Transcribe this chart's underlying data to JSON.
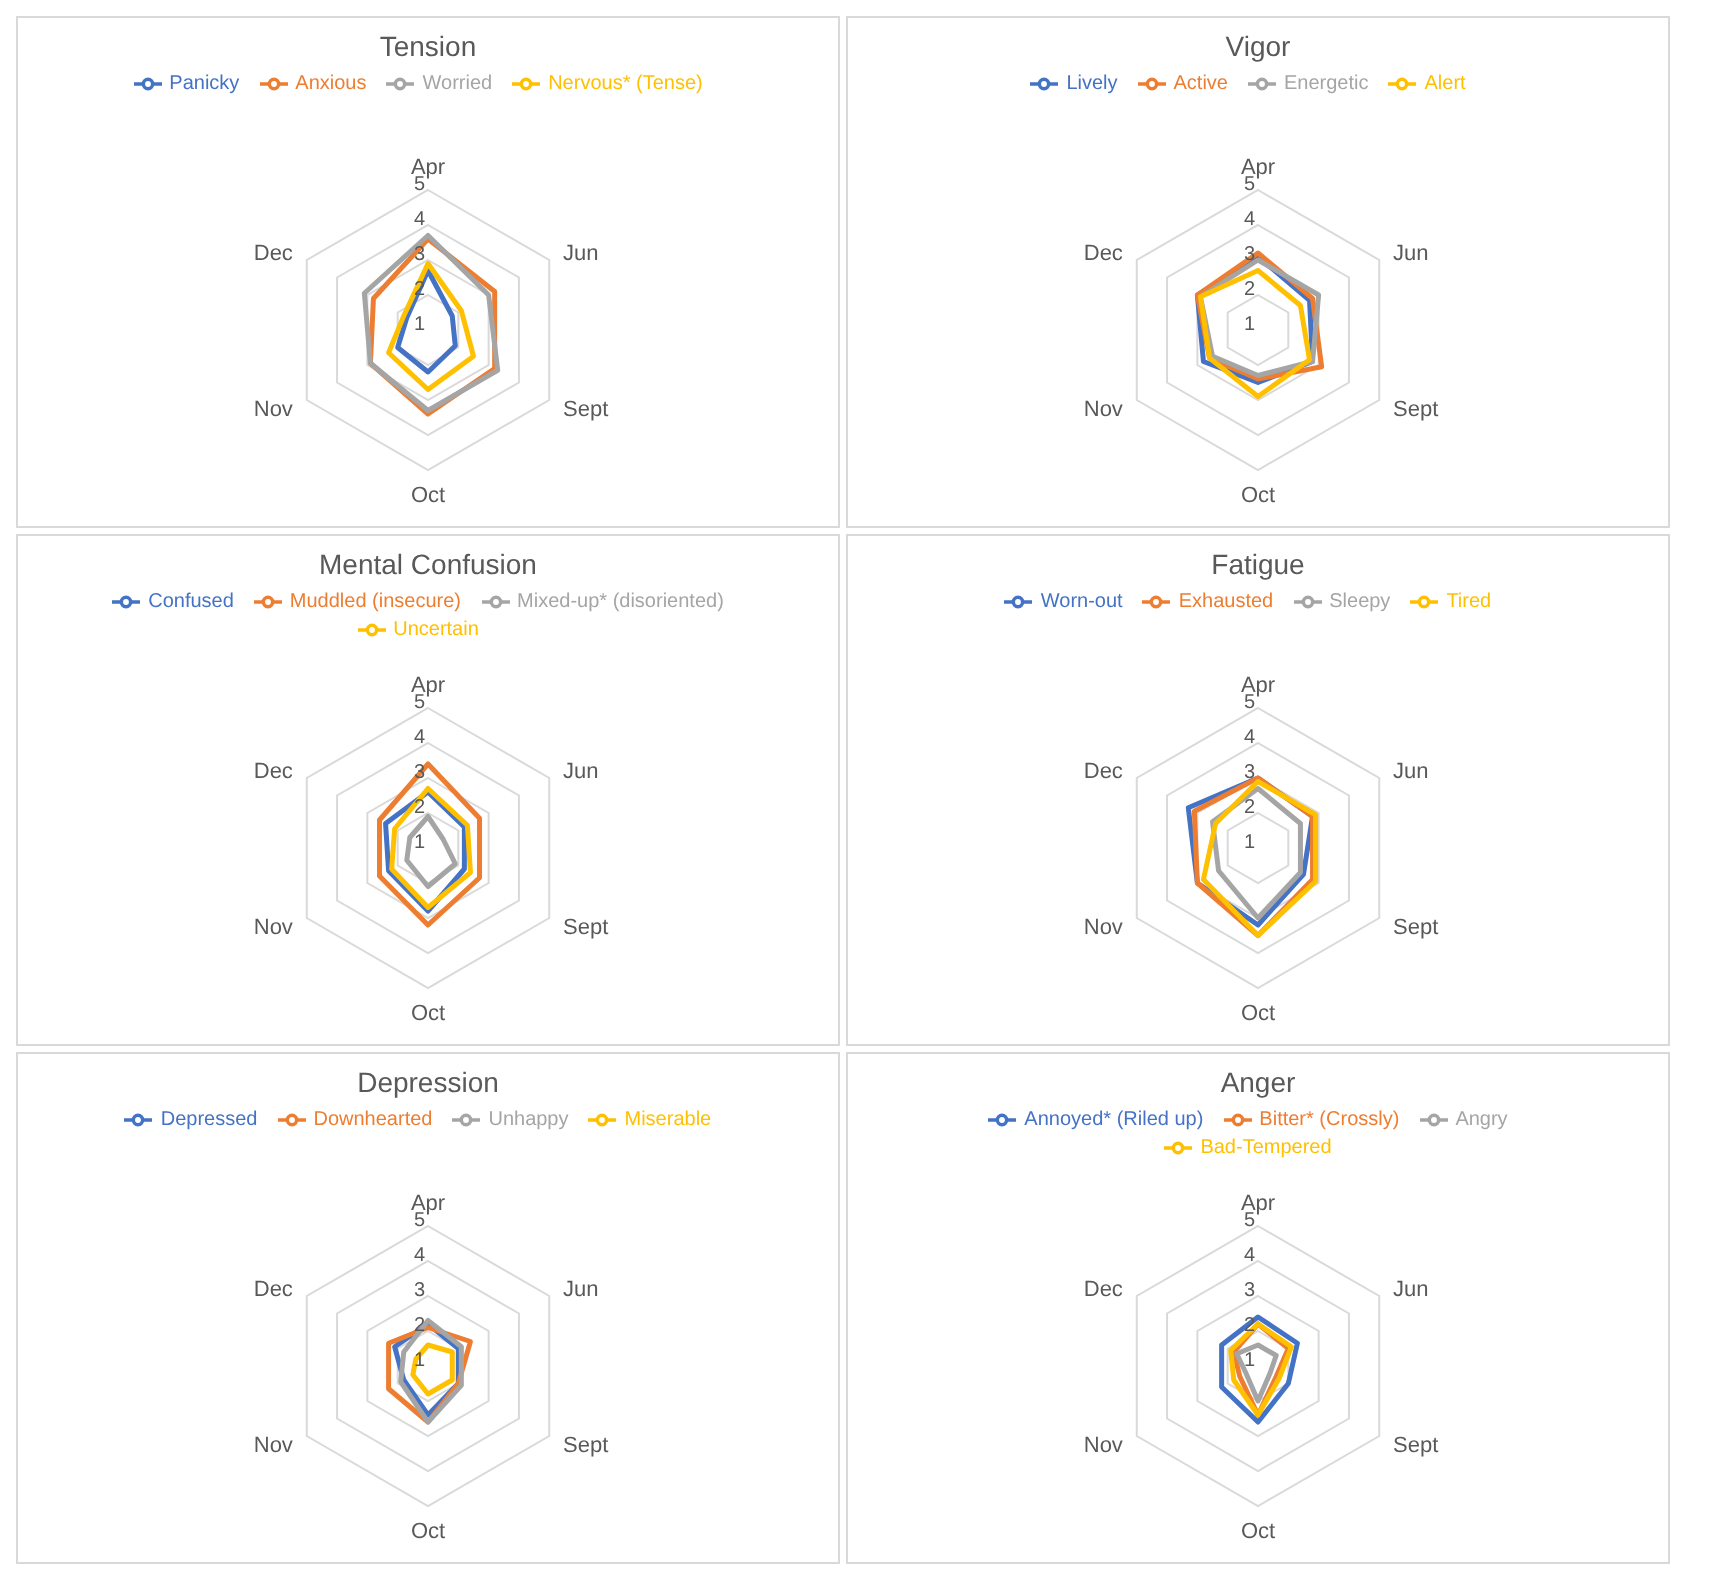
{
  "chart_data": [
    {
      "type": "radar",
      "title": "Tension",
      "categories": [
        "Apr",
        "Jun",
        "Sept",
        "Oct",
        "Nov",
        "Dec"
      ],
      "ylim": [
        1,
        5
      ],
      "yticks": [
        1,
        2,
        3,
        4,
        5
      ],
      "grid": true,
      "legend": "top",
      "series": [
        {
          "name": "Panicky",
          "color": "#4472c4",
          "values": [
            2.7,
            1.8,
            1.9,
            2.2,
            2.0,
            1.7
          ]
        },
        {
          "name": "Anxious",
          "color": "#ed7d31",
          "values": [
            3.6,
            3.2,
            3.2,
            3.4,
            2.9,
            2.8
          ]
        },
        {
          "name": "Worried",
          "color": "#a5a5a5",
          "values": [
            3.7,
            3.0,
            3.3,
            3.3,
            2.9,
            3.1
          ]
        },
        {
          "name": "Nervous* (Tense)",
          "color": "#ffc000",
          "values": [
            2.9,
            2.1,
            2.5,
            2.7,
            2.3,
            1.8
          ]
        }
      ]
    },
    {
      "type": "radar",
      "title": "Vigor",
      "categories": [
        "Apr",
        "Jun",
        "Sept",
        "Oct",
        "Nov",
        "Dec"
      ],
      "ylim": [
        1,
        5
      ],
      "yticks": [
        1,
        2,
        3,
        4,
        5
      ],
      "grid": true,
      "legend": "top",
      "series": [
        {
          "name": "Lively",
          "color": "#4472c4",
          "values": [
            3.1,
            2.7,
            2.8,
            2.5,
            2.8,
            3.0
          ]
        },
        {
          "name": "Active",
          "color": "#ed7d31",
          "values": [
            3.2,
            2.8,
            3.1,
            2.4,
            2.6,
            3.0
          ]
        },
        {
          "name": "Energetic",
          "color": "#a5a5a5",
          "values": [
            3.0,
            3.0,
            2.8,
            2.3,
            2.5,
            2.9
          ]
        },
        {
          "name": "Alert",
          "color": "#ffc000",
          "values": [
            2.7,
            2.4,
            2.7,
            2.9,
            2.6,
            2.9
          ]
        }
      ]
    },
    {
      "type": "radar",
      "title": "Mental Confusion",
      "categories": [
        "Apr",
        "Jun",
        "Sept",
        "Oct",
        "Nov",
        "Dec"
      ],
      "ylim": [
        1,
        5
      ],
      "yticks": [
        1,
        2,
        3,
        4,
        5
      ],
      "grid": true,
      "legend": "top",
      "series": [
        {
          "name": "Confused",
          "color": "#4472c4",
          "values": [
            2.6,
            2.2,
            2.2,
            2.8,
            2.3,
            2.4
          ]
        },
        {
          "name": "Muddled (insecure)",
          "color": "#ed7d31",
          "values": [
            3.4,
            2.7,
            2.7,
            3.2,
            2.6,
            2.6
          ]
        },
        {
          "name": "Mixed-up* (disoriented)",
          "color": "#a5a5a5",
          "values": [
            1.9,
            1.5,
            1.9,
            2.1,
            1.7,
            1.6
          ]
        },
        {
          "name": "Uncertain",
          "color": "#ffc000",
          "values": [
            2.7,
            2.3,
            2.4,
            2.7,
            2.2,
            2.1
          ]
        }
      ]
    },
    {
      "type": "radar",
      "title": "Fatigue",
      "categories": [
        "Apr",
        "Jun",
        "Sept",
        "Oct",
        "Nov",
        "Dec"
      ],
      "ylim": [
        1,
        5
      ],
      "yticks": [
        1,
        2,
        3,
        4,
        5
      ],
      "grid": true,
      "legend": "top",
      "series": [
        {
          "name": "Worn-out",
          "color": "#4472c4",
          "values": [
            3.0,
            2.8,
            2.5,
            3.2,
            3.0,
            3.3
          ]
        },
        {
          "name": "Exhausted",
          "color": "#ed7d31",
          "values": [
            3.0,
            2.8,
            2.8,
            3.5,
            3.0,
            3.1
          ]
        },
        {
          "name": "Sleepy",
          "color": "#a5a5a5",
          "values": [
            2.7,
            2.4,
            2.4,
            3.0,
            2.3,
            2.5
          ]
        },
        {
          "name": "Tired",
          "color": "#ffc000",
          "values": [
            2.9,
            2.9,
            2.9,
            3.5,
            2.8,
            2.4
          ]
        }
      ]
    },
    {
      "type": "radar",
      "title": "Depression",
      "categories": [
        "Apr",
        "Jun",
        "Sept",
        "Oct",
        "Nov",
        "Dec"
      ],
      "ylim": [
        1,
        5
      ],
      "yticks": [
        1,
        2,
        3,
        4,
        5
      ],
      "grid": true,
      "legend": "top",
      "series": [
        {
          "name": "Depressed",
          "color": "#4472c4",
          "values": [
            2.2,
            2.0,
            2.0,
            2.4,
            1.8,
            2.1
          ]
        },
        {
          "name": "Downhearted",
          "color": "#ed7d31",
          "values": [
            2.1,
            2.4,
            2.0,
            2.6,
            2.3,
            2.3
          ]
        },
        {
          "name": "Unhappy",
          "color": "#a5a5a5",
          "values": [
            2.3,
            2.1,
            2.1,
            2.6,
            1.9,
            1.8
          ]
        },
        {
          "name": "Miserable",
          "color": "#ffc000",
          "values": [
            1.6,
            1.8,
            1.8,
            1.8,
            1.5,
            1.4
          ]
        }
      ]
    },
    {
      "type": "radar",
      "title": "Anger",
      "categories": [
        "Apr",
        "Jun",
        "Sept",
        "Oct",
        "Nov",
        "Dec"
      ],
      "ylim": [
        1,
        5
      ],
      "yticks": [
        1,
        2,
        3,
        4,
        5
      ],
      "grid": true,
      "legend": "top",
      "series": [
        {
          "name": "Annoyed* (Riled up)",
          "color": "#4472c4",
          "values": [
            2.4,
            2.3,
            2.0,
            2.6,
            2.2,
            2.2
          ]
        },
        {
          "name": "Bitter* (Crossly)",
          "color": "#ed7d31",
          "values": [
            2.2,
            2.0,
            1.6,
            2.4,
            1.6,
            1.8
          ]
        },
        {
          "name": "Angry",
          "color": "#a5a5a5",
          "values": [
            1.6,
            1.6,
            1.4,
            2.0,
            1.4,
            1.7
          ]
        },
        {
          "name": "Bad-Tempered",
          "color": "#ffc000",
          "values": [
            2.2,
            2.1,
            1.7,
            2.4,
            1.8,
            1.9
          ]
        }
      ]
    }
  ]
}
